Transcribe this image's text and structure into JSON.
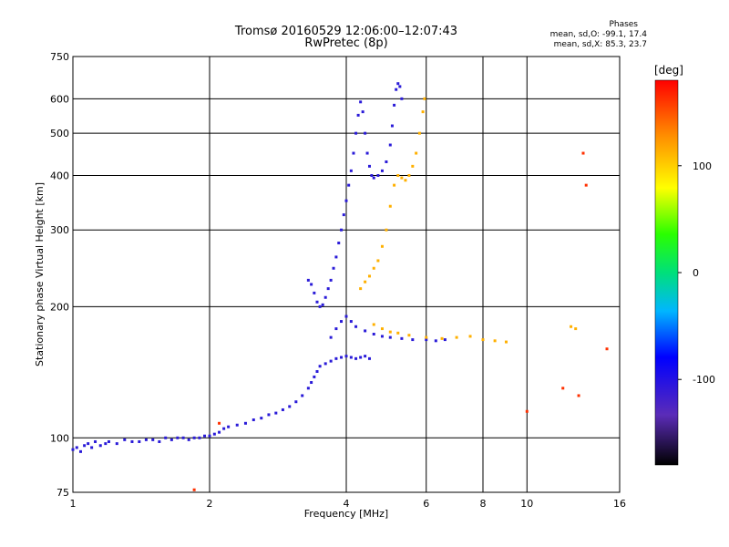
{
  "header": {
    "title_line1": "Tromsø 20160529 12:06:00–12:07:43",
    "title_line2": "RwPretec (8p)"
  },
  "phases": {
    "title": "Phases",
    "o_line": "mean, sd,O: -99.1, 17.4",
    "x_line": "mean, sd,X:  85.3, 23.7"
  },
  "colorbar": {
    "unit": "[deg]",
    "ticks": [
      100,
      0,
      -100
    ],
    "range": [
      -180,
      180
    ]
  },
  "chart_data": {
    "type": "scatter",
    "title": "Tromsø 20160529 12:06:00–12:07:43",
    "subtitle": "RwPretec (8p)",
    "xlabel": "Frequency [MHz]",
    "ylabel": "Stationary phase Virtual Height [km]",
    "x_scale": "log",
    "y_scale": "log",
    "xlim": [
      1,
      16
    ],
    "ylim": [
      75,
      750
    ],
    "x_ticks": [
      1,
      2,
      4,
      6,
      8,
      10,
      16
    ],
    "y_ticks": [
      75,
      100,
      200,
      300,
      400,
      500,
      600,
      750
    ],
    "grid": true,
    "series": [
      {
        "phase": "O",
        "color_value": -100,
        "points": [
          [
            1.0,
            94
          ],
          [
            1.02,
            95
          ],
          [
            1.04,
            93
          ],
          [
            1.06,
            96
          ],
          [
            1.08,
            97
          ],
          [
            1.1,
            95
          ],
          [
            1.12,
            98
          ],
          [
            1.15,
            96
          ],
          [
            1.18,
            97
          ],
          [
            1.2,
            98
          ],
          [
            1.25,
            97
          ],
          [
            1.3,
            99
          ],
          [
            1.35,
            98
          ],
          [
            1.4,
            98
          ],
          [
            1.45,
            99
          ],
          [
            1.5,
            99
          ],
          [
            1.55,
            98
          ],
          [
            1.6,
            100
          ],
          [
            1.65,
            99
          ],
          [
            1.7,
            100
          ],
          [
            1.75,
            100
          ],
          [
            1.8,
            99
          ],
          [
            1.85,
            100
          ],
          [
            1.9,
            100
          ],
          [
            1.95,
            101
          ],
          [
            2.0,
            101
          ],
          [
            2.05,
            102
          ],
          [
            2.1,
            103
          ],
          [
            2.15,
            105
          ],
          [
            2.2,
            106
          ],
          [
            2.3,
            107
          ],
          [
            2.4,
            108
          ],
          [
            2.5,
            110
          ],
          [
            2.6,
            111
          ],
          [
            2.7,
            113
          ],
          [
            2.8,
            114
          ],
          [
            2.9,
            116
          ],
          [
            3.0,
            118
          ],
          [
            3.1,
            121
          ],
          [
            3.2,
            125
          ],
          [
            3.3,
            130
          ],
          [
            3.35,
            134
          ],
          [
            3.4,
            138
          ],
          [
            3.45,
            142
          ],
          [
            3.5,
            146
          ],
          [
            3.6,
            148
          ],
          [
            3.7,
            150
          ],
          [
            3.8,
            152
          ],
          [
            3.9,
            153
          ],
          [
            4.0,
            154
          ],
          [
            4.1,
            153
          ],
          [
            4.2,
            152
          ],
          [
            4.3,
            153
          ],
          [
            4.4,
            154
          ],
          [
            4.5,
            152
          ],
          [
            3.3,
            230
          ],
          [
            3.35,
            225
          ],
          [
            3.4,
            215
          ],
          [
            3.45,
            205
          ],
          [
            3.5,
            200
          ],
          [
            3.55,
            202
          ],
          [
            3.6,
            210
          ],
          [
            3.65,
            220
          ],
          [
            3.7,
            230
          ],
          [
            3.75,
            245
          ],
          [
            3.8,
            260
          ],
          [
            3.85,
            280
          ],
          [
            3.9,
            300
          ],
          [
            3.95,
            325
          ],
          [
            4.0,
            350
          ],
          [
            4.05,
            380
          ],
          [
            4.1,
            410
          ],
          [
            4.15,
            450
          ],
          [
            4.2,
            500
          ],
          [
            4.25,
            550
          ],
          [
            4.3,
            590
          ],
          [
            4.35,
            560
          ],
          [
            4.4,
            500
          ],
          [
            4.45,
            450
          ],
          [
            4.5,
            420
          ],
          [
            4.55,
            400
          ],
          [
            4.6,
            395
          ],
          [
            4.7,
            400
          ],
          [
            4.8,
            410
          ],
          [
            4.9,
            430
          ],
          [
            5.0,
            470
          ],
          [
            5.05,
            520
          ],
          [
            5.1,
            580
          ],
          [
            5.15,
            630
          ],
          [
            5.2,
            650
          ],
          [
            5.25,
            640
          ],
          [
            5.3,
            600
          ],
          [
            3.7,
            170
          ],
          [
            3.8,
            178
          ],
          [
            3.9,
            185
          ],
          [
            4.0,
            190
          ],
          [
            4.1,
            185
          ],
          [
            4.2,
            180
          ],
          [
            4.4,
            176
          ],
          [
            4.6,
            173
          ],
          [
            4.8,
            171
          ],
          [
            5.0,
            170
          ],
          [
            5.3,
            169
          ],
          [
            5.6,
            168
          ],
          [
            6.0,
            168
          ],
          [
            6.3,
            167
          ],
          [
            6.6,
            168
          ]
        ]
      },
      {
        "phase": "X",
        "color_value": 85,
        "points": [
          [
            4.3,
            220
          ],
          [
            4.4,
            228
          ],
          [
            4.5,
            235
          ],
          [
            4.6,
            245
          ],
          [
            4.7,
            255
          ],
          [
            4.8,
            275
          ],
          [
            4.9,
            300
          ],
          [
            5.0,
            340
          ],
          [
            5.1,
            380
          ],
          [
            5.2,
            400
          ],
          [
            5.3,
            395
          ],
          [
            5.4,
            390
          ],
          [
            5.5,
            400
          ],
          [
            5.6,
            420
          ],
          [
            5.7,
            450
          ],
          [
            5.8,
            500
          ],
          [
            5.9,
            560
          ],
          [
            5.95,
            600
          ],
          [
            4.6,
            182
          ],
          [
            4.8,
            178
          ],
          [
            5.0,
            175
          ],
          [
            5.2,
            174
          ],
          [
            5.5,
            172
          ],
          [
            6.0,
            170
          ],
          [
            6.5,
            169
          ],
          [
            7.0,
            170
          ],
          [
            7.5,
            171
          ],
          [
            8.0,
            168
          ],
          [
            8.5,
            167
          ],
          [
            9.0,
            166
          ],
          [
            12.5,
            180
          ],
          [
            12.8,
            178
          ]
        ]
      },
      {
        "phase": "other",
        "color_value": 150,
        "points": [
          [
            1.85,
            76
          ],
          [
            2.1,
            108
          ],
          [
            12.0,
            130
          ],
          [
            13.0,
            125
          ],
          [
            10.0,
            115
          ],
          [
            15.0,
            160
          ],
          [
            13.5,
            380
          ],
          [
            13.3,
            450
          ]
        ]
      }
    ]
  }
}
